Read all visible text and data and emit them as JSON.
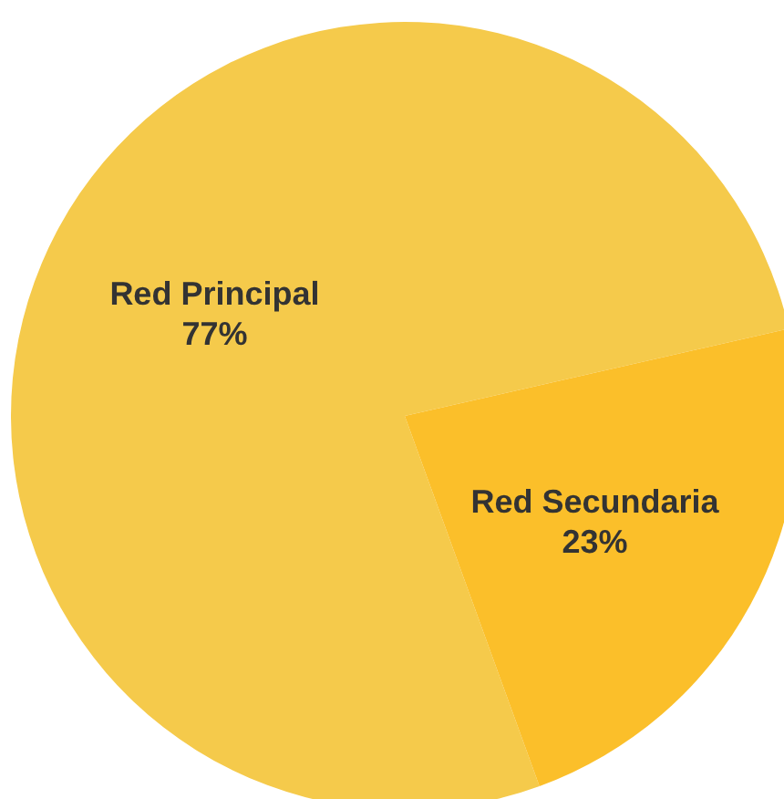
{
  "chart_data": {
    "type": "pie",
    "categories": [
      "Red Principal",
      "Red Secundaria"
    ],
    "values": [
      77,
      23
    ],
    "colors": [
      "#f5ca4b",
      "#fbbf2a"
    ],
    "value_labels": [
      "77%",
      "23%"
    ]
  }
}
